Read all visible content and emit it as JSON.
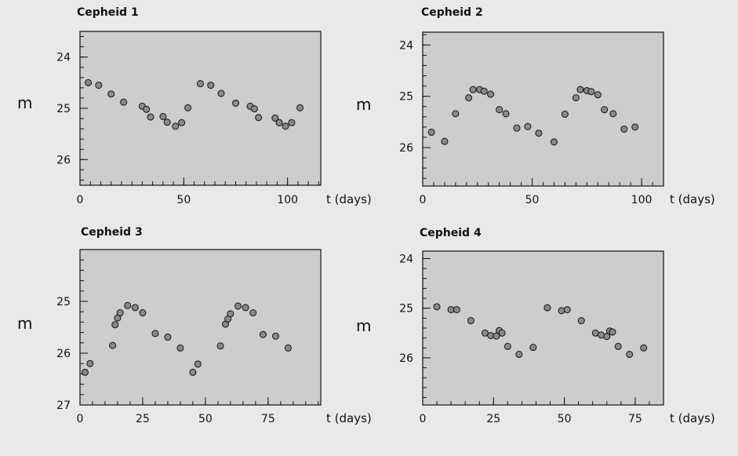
{
  "chart_data": [
    {
      "type": "scatter",
      "title": "Cepheid 1",
      "xlabel": "t (days)",
      "ylabel": "m",
      "xlim": [
        0,
        116
      ],
      "ylim": [
        26.5,
        23.5
      ],
      "y_inverted": true,
      "xticks": [
        0,
        50,
        100
      ],
      "yticks": [
        24,
        25,
        26
      ],
      "grid": false,
      "points": [
        {
          "x": 4,
          "y": 24.5
        },
        {
          "x": 9,
          "y": 24.55
        },
        {
          "x": 15,
          "y": 24.72
        },
        {
          "x": 21,
          "y": 24.88
        },
        {
          "x": 30,
          "y": 24.96
        },
        {
          "x": 32,
          "y": 25.02
        },
        {
          "x": 34,
          "y": 25.17
        },
        {
          "x": 40,
          "y": 25.16
        },
        {
          "x": 42,
          "y": 25.27
        },
        {
          "x": 46,
          "y": 25.35
        },
        {
          "x": 49,
          "y": 25.28
        },
        {
          "x": 52,
          "y": 24.99
        },
        {
          "x": 58,
          "y": 24.52
        },
        {
          "x": 63,
          "y": 24.55
        },
        {
          "x": 68,
          "y": 24.71
        },
        {
          "x": 75,
          "y": 24.9
        },
        {
          "x": 82,
          "y": 24.96
        },
        {
          "x": 84,
          "y": 25.01
        },
        {
          "x": 86,
          "y": 25.18
        },
        {
          "x": 94,
          "y": 25.19
        },
        {
          "x": 96,
          "y": 25.28
        },
        {
          "x": 99,
          "y": 25.35
        },
        {
          "x": 102,
          "y": 25.28
        },
        {
          "x": 106,
          "y": 24.99
        }
      ]
    },
    {
      "type": "scatter",
      "title": "Cepheid 2",
      "xlabel": "t (days)",
      "ylabel": "m",
      "xlim": [
        0,
        110
      ],
      "ylim": [
        26.75,
        23.75
      ],
      "y_inverted": true,
      "xticks": [
        0,
        50,
        100
      ],
      "yticks": [
        24,
        25,
        26
      ],
      "grid": false,
      "points": [
        {
          "x": 4,
          "y": 25.7
        },
        {
          "x": 10,
          "y": 25.88
        },
        {
          "x": 15,
          "y": 25.34
        },
        {
          "x": 21,
          "y": 25.03
        },
        {
          "x": 23,
          "y": 24.87
        },
        {
          "x": 26,
          "y": 24.87
        },
        {
          "x": 28,
          "y": 24.9
        },
        {
          "x": 31,
          "y": 24.96
        },
        {
          "x": 35,
          "y": 25.26
        },
        {
          "x": 38,
          "y": 25.34
        },
        {
          "x": 43,
          "y": 25.62
        },
        {
          "x": 48,
          "y": 25.59
        },
        {
          "x": 53,
          "y": 25.72
        },
        {
          "x": 60,
          "y": 25.89
        },
        {
          "x": 65,
          "y": 25.35
        },
        {
          "x": 70,
          "y": 25.03
        },
        {
          "x": 72,
          "y": 24.87
        },
        {
          "x": 75,
          "y": 24.89
        },
        {
          "x": 77,
          "y": 24.91
        },
        {
          "x": 80,
          "y": 24.97
        },
        {
          "x": 83,
          "y": 25.26
        },
        {
          "x": 87,
          "y": 25.34
        },
        {
          "x": 92,
          "y": 25.64
        },
        {
          "x": 97,
          "y": 25.6
        }
      ]
    },
    {
      "type": "scatter",
      "title": "Cepheid 3",
      "xlabel": "t (days)",
      "ylabel": "m",
      "xlim": [
        0,
        96
      ],
      "ylim": [
        27,
        24
      ],
      "y_inverted": true,
      "xticks": [
        0,
        25,
        50,
        75
      ],
      "yticks": [
        25,
        26,
        27
      ],
      "grid": false,
      "points": [
        {
          "x": 2,
          "y": 26.37
        },
        {
          "x": 4,
          "y": 26.2
        },
        {
          "x": 13,
          "y": 25.85
        },
        {
          "x": 14,
          "y": 25.45
        },
        {
          "x": 15,
          "y": 25.32
        },
        {
          "x": 16,
          "y": 25.22
        },
        {
          "x": 19,
          "y": 25.08
        },
        {
          "x": 22,
          "y": 25.12
        },
        {
          "x": 25,
          "y": 25.22
        },
        {
          "x": 30,
          "y": 25.62
        },
        {
          "x": 35,
          "y": 25.69
        },
        {
          "x": 40,
          "y": 25.9
        },
        {
          "x": 45,
          "y": 26.37
        },
        {
          "x": 47,
          "y": 26.21
        },
        {
          "x": 56,
          "y": 25.86
        },
        {
          "x": 58,
          "y": 25.44
        },
        {
          "x": 59,
          "y": 25.34
        },
        {
          "x": 60,
          "y": 25.24
        },
        {
          "x": 63,
          "y": 25.09
        },
        {
          "x": 66,
          "y": 25.12
        },
        {
          "x": 69,
          "y": 25.22
        },
        {
          "x": 73,
          "y": 25.64
        },
        {
          "x": 78,
          "y": 25.67
        },
        {
          "x": 83,
          "y": 25.9
        }
      ]
    },
    {
      "type": "scatter",
      "title": "Cepheid 4",
      "xlabel": "t (days)",
      "ylabel": "m",
      "xlim": [
        0,
        85
      ],
      "ylim": [
        26.95,
        23.85
      ],
      "y_inverted": true,
      "xticks": [
        0,
        25,
        50,
        75
      ],
      "yticks": [
        24,
        25,
        26
      ],
      "grid": false,
      "points": [
        {
          "x": 5,
          "y": 24.97
        },
        {
          "x": 10,
          "y": 25.03
        },
        {
          "x": 12,
          "y": 25.03
        },
        {
          "x": 17,
          "y": 25.25
        },
        {
          "x": 22,
          "y": 25.5
        },
        {
          "x": 24,
          "y": 25.55
        },
        {
          "x": 26,
          "y": 25.56
        },
        {
          "x": 27,
          "y": 25.45
        },
        {
          "x": 28,
          "y": 25.5
        },
        {
          "x": 30,
          "y": 25.77
        },
        {
          "x": 34,
          "y": 25.93
        },
        {
          "x": 39,
          "y": 25.79
        },
        {
          "x": 44,
          "y": 24.99
        },
        {
          "x": 49,
          "y": 25.05
        },
        {
          "x": 51,
          "y": 25.03
        },
        {
          "x": 56,
          "y": 25.25
        },
        {
          "x": 61,
          "y": 25.5
        },
        {
          "x": 63,
          "y": 25.54
        },
        {
          "x": 65,
          "y": 25.57
        },
        {
          "x": 66,
          "y": 25.46
        },
        {
          "x": 67,
          "y": 25.48
        },
        {
          "x": 69,
          "y": 25.77
        },
        {
          "x": 73,
          "y": 25.93
        },
        {
          "x": 78,
          "y": 25.8
        }
      ]
    }
  ]
}
